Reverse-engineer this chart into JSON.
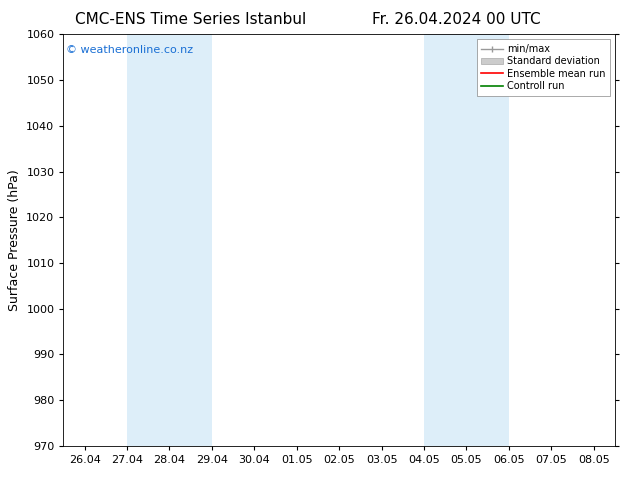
{
  "title_left": "CMC-ENS Time Series Istanbul",
  "title_right": "Fr. 26.04.2024 00 UTC",
  "ylabel": "Surface Pressure (hPa)",
  "ylim": [
    970,
    1060
  ],
  "yticks": [
    970,
    980,
    990,
    1000,
    1010,
    1020,
    1030,
    1040,
    1050,
    1060
  ],
  "xtick_labels": [
    "26.04",
    "27.04",
    "28.04",
    "29.04",
    "30.04",
    "01.05",
    "02.05",
    "03.05",
    "04.05",
    "05.05",
    "06.05",
    "07.05",
    "08.05"
  ],
  "xtick_positions": [
    0,
    1,
    2,
    3,
    4,
    5,
    6,
    7,
    8,
    9,
    10,
    11,
    12
  ],
  "shaded_bands": [
    {
      "x_start": 1,
      "x_end": 3,
      "color": "#ddeef9"
    },
    {
      "x_start": 8,
      "x_end": 10,
      "color": "#ddeef9"
    }
  ],
  "watermark": "© weatheronline.co.nz",
  "watermark_color": "#1a6fd4",
  "legend_entries": [
    {
      "label": "min/max",
      "color": "#999999",
      "type": "minmax"
    },
    {
      "label": "Standard deviation",
      "color": "#cccccc",
      "type": "band"
    },
    {
      "label": "Ensemble mean run",
      "color": "red",
      "type": "line"
    },
    {
      "label": "Controll run",
      "color": "green",
      "type": "line"
    }
  ],
  "bg_color": "#ffffff",
  "spine_color": "#000000",
  "tick_color": "#000000",
  "title_fontsize": 11,
  "tick_fontsize": 8,
  "ylabel_fontsize": 9,
  "watermark_fontsize": 8,
  "legend_fontsize": 7
}
